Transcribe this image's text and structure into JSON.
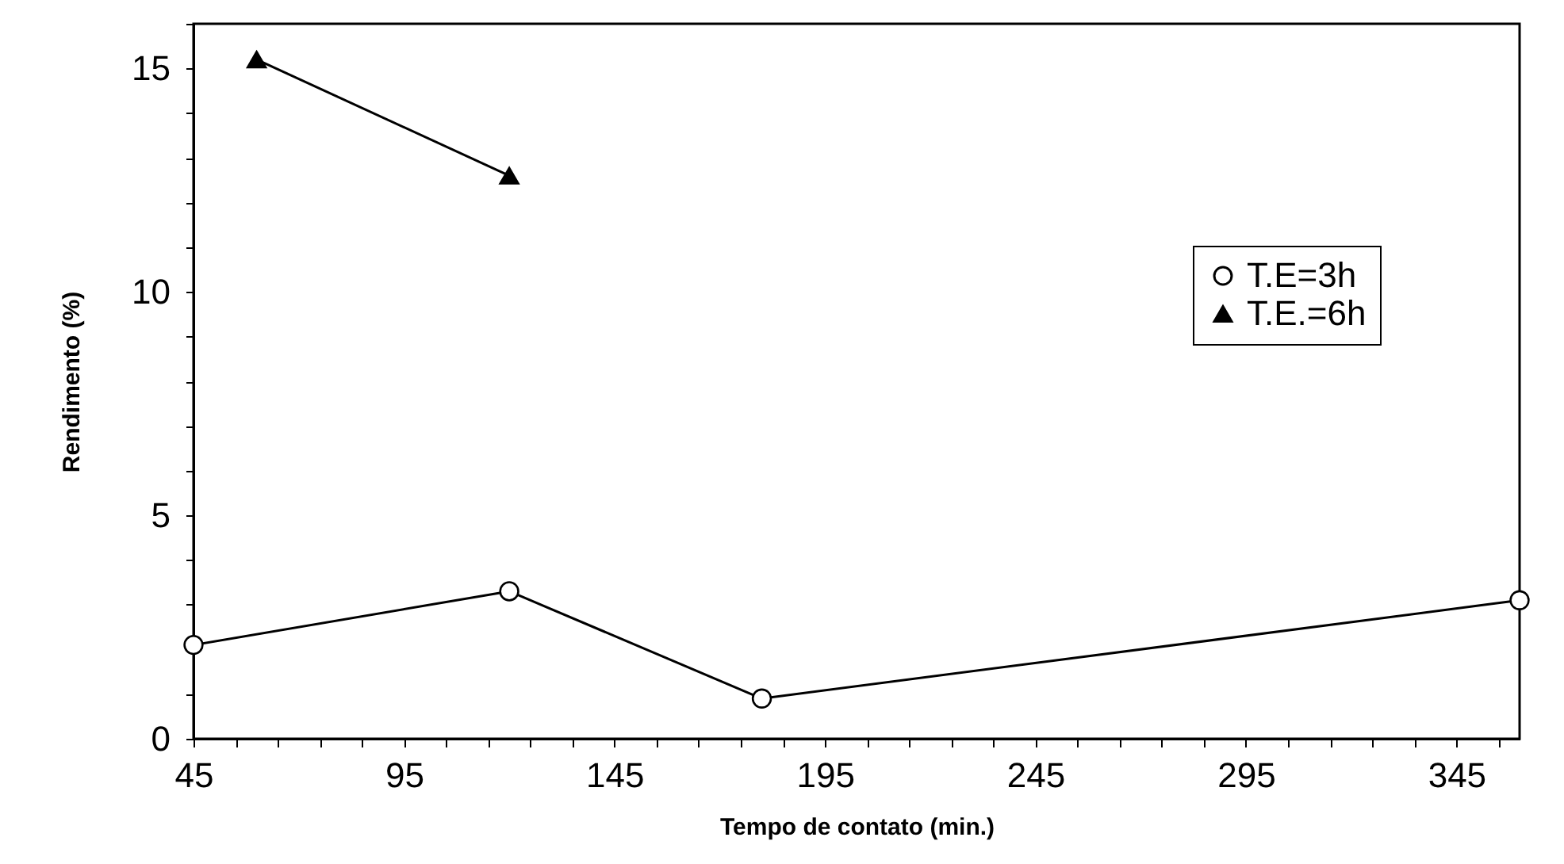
{
  "chart_data": {
    "type": "line",
    "xlabel": "Tempo de contato (min.)",
    "ylabel": "Rendimento (%)",
    "xlim": [
      45,
      360
    ],
    "ylim": [
      0,
      16
    ],
    "xticks": [
      45,
      {
        "value": 55,
        "label": null
      },
      {
        "value": 65,
        "label": null
      },
      {
        "value": 75,
        "label": null
      },
      {
        "value": 85,
        "label": null
      },
      95,
      {
        "value": 105,
        "label": null
      },
      {
        "value": 115,
        "label": null
      },
      {
        "value": 125,
        "label": null
      },
      {
        "value": 135,
        "label": null
      },
      145,
      {
        "value": 155,
        "label": null
      },
      {
        "value": 165,
        "label": null
      },
      {
        "value": 175,
        "label": null
      },
      {
        "value": 185,
        "label": null
      },
      195,
      {
        "value": 205,
        "label": null
      },
      {
        "value": 215,
        "label": null
      },
      {
        "value": 225,
        "label": null
      },
      {
        "value": 235,
        "label": null
      },
      245,
      {
        "value": 255,
        "label": null
      },
      {
        "value": 265,
        "label": null
      },
      {
        "value": 275,
        "label": null
      },
      {
        "value": 285,
        "label": null
      },
      295,
      {
        "value": 305,
        "label": null
      },
      {
        "value": 315,
        "label": null
      },
      {
        "value": 325,
        "label": null
      },
      {
        "value": 335,
        "label": null
      },
      345,
      {
        "value": 355,
        "label": null
      }
    ],
    "yticks": [
      0,
      {
        "value": 1,
        "label": null
      },
      {
        "value": 2,
        "label": null
      },
      {
        "value": 3,
        "label": null
      },
      {
        "value": 4,
        "label": null
      },
      5,
      {
        "value": 6,
        "label": null
      },
      {
        "value": 7,
        "label": null
      },
      {
        "value": 8,
        "label": null
      },
      {
        "value": 9,
        "label": null
      },
      10,
      {
        "value": 11,
        "label": null
      },
      {
        "value": 12,
        "label": null
      },
      {
        "value": 13,
        "label": null
      },
      {
        "value": 14,
        "label": null
      },
      15,
      {
        "value": 16,
        "label": null
      }
    ],
    "grid": false,
    "legend": "right",
    "series": [
      {
        "name": "T.E=3h",
        "color": "#000000",
        "marker": "circle",
        "x": [
          45,
          120,
          180,
          360
        ],
        "values": [
          2.1,
          3.3,
          0.9,
          3.1
        ]
      },
      {
        "name": "T.E.=6h",
        "color": "#000000",
        "marker": "triangle",
        "x": [
          60,
          120
        ],
        "values": [
          15.2,
          12.6
        ]
      }
    ]
  }
}
